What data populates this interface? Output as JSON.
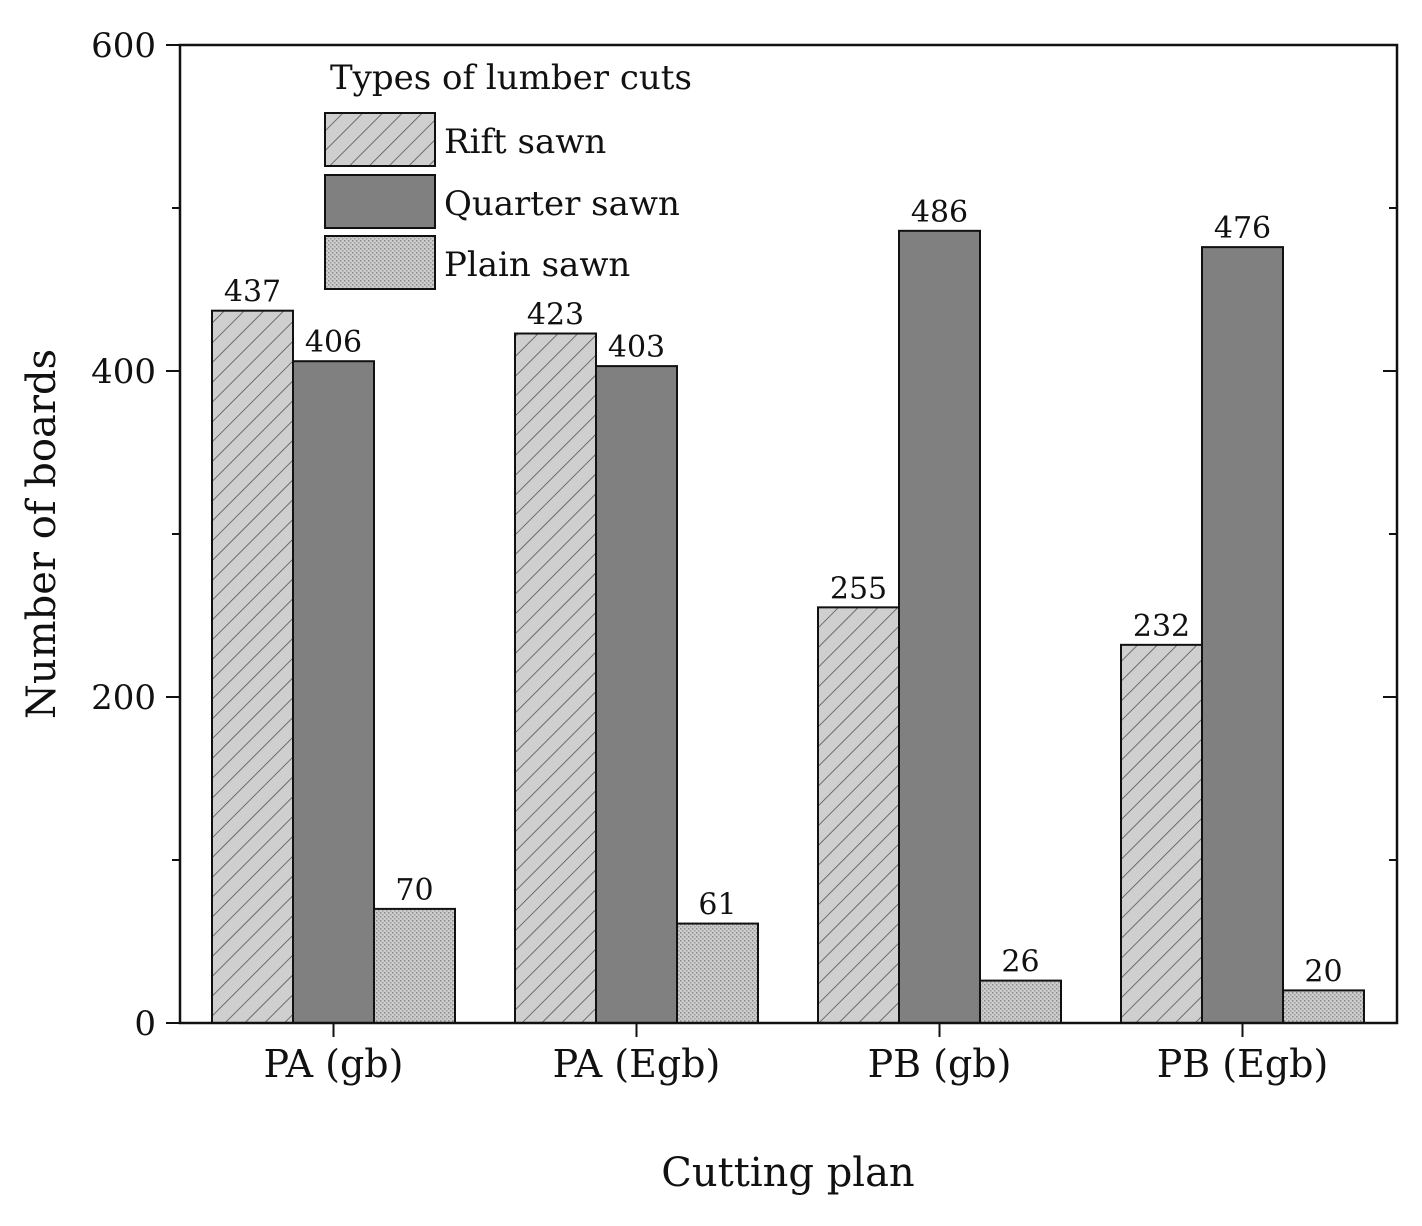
{
  "chart_data": {
    "type": "bar",
    "title": "",
    "xlabel": "Cutting plan",
    "ylabel": "Number of boards",
    "ylim": [
      0,
      600
    ],
    "yticks": [
      0,
      200,
      400,
      600
    ],
    "minor_yticks": [
      100,
      300,
      500
    ],
    "categories": [
      "PA (gb)",
      "PA (Egb)",
      "PB (gb)",
      "PB (Egb)"
    ],
    "legend": {
      "title": "Types of lumber cuts",
      "placement": "top-left"
    },
    "series": [
      {
        "name": "Rift sawn",
        "values": [
          437,
          423,
          255,
          232
        ],
        "color": "#cfcfcf",
        "pattern": "diagonal-hatch"
      },
      {
        "name": "Quarter sawn",
        "values": [
          406,
          403,
          486,
          476
        ],
        "color": "#808080",
        "pattern": "solid"
      },
      {
        "name": "Plain sawn",
        "values": [
          70,
          61,
          26,
          20
        ],
        "color": "#c8c8c8",
        "pattern": "dots"
      }
    ]
  }
}
